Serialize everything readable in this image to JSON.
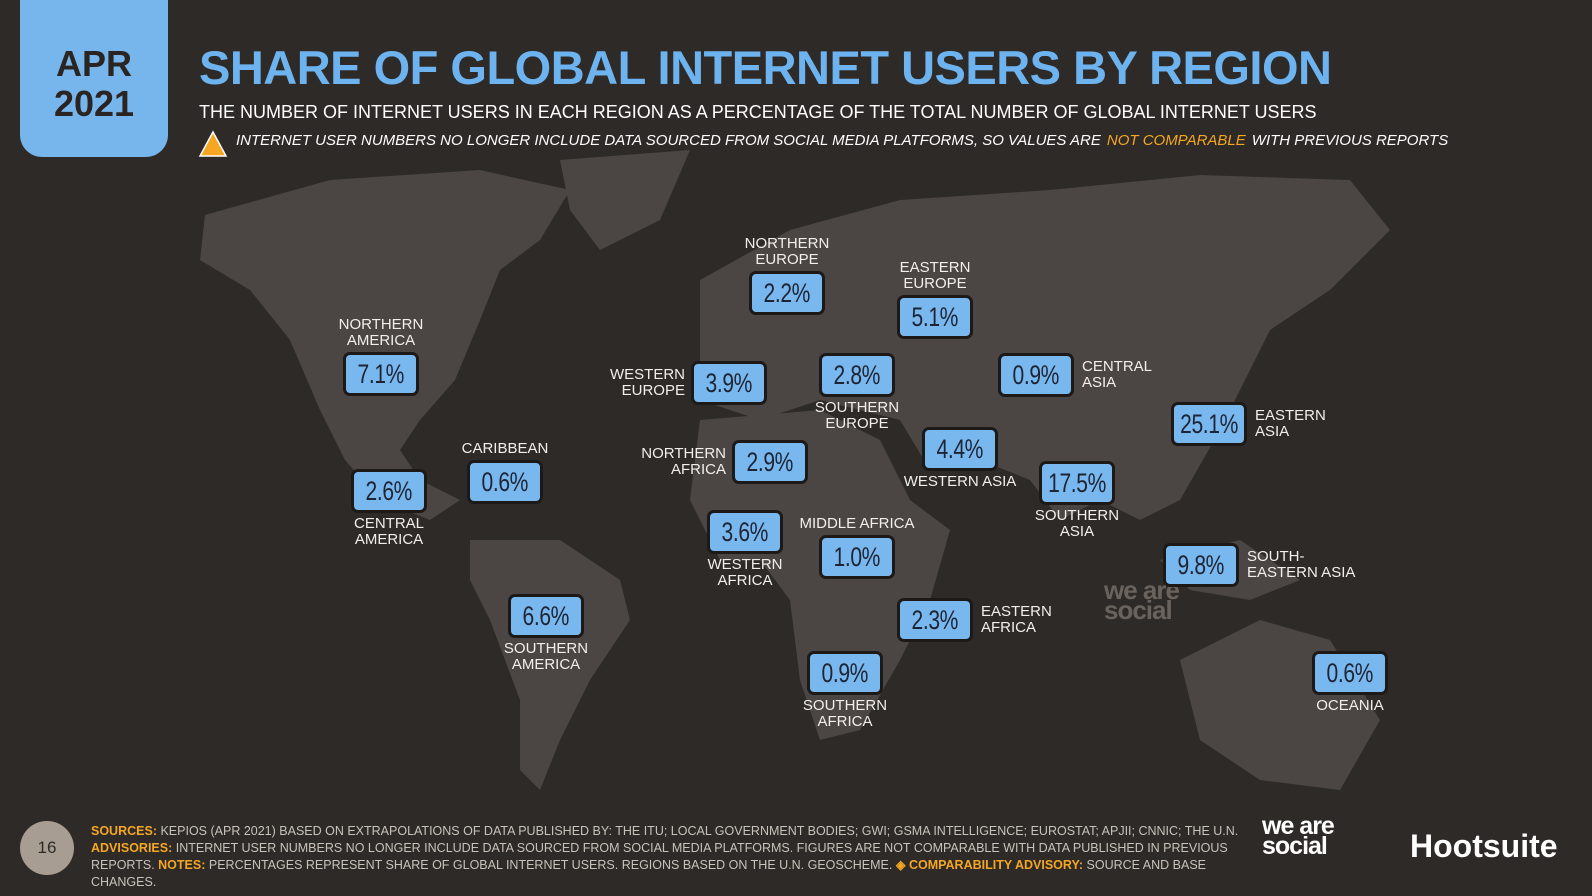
{
  "header": {
    "month": "APR",
    "year": "2021",
    "title": "SHARE OF GLOBAL INTERNET USERS BY REGION",
    "subtitle": "THE NUMBER OF INTERNET USERS IN EACH REGION AS A PERCENTAGE OF THE TOTAL NUMBER OF GLOBAL INTERNET USERS",
    "warning": {
      "before": "INTERNET USER NUMBERS NO LONGER INCLUDE DATA SOURCED FROM SOCIAL MEDIA PLATFORMS, SO VALUES ARE",
      "highlight": "NOT COMPARABLE",
      "after": "WITH PREVIOUS REPORTS"
    }
  },
  "regions": [
    {
      "name": "NORTHERN AMERICA",
      "share": "7.1%"
    },
    {
      "name": "CENTRAL AMERICA",
      "share": "2.6%"
    },
    {
      "name": "CARIBBEAN",
      "share": "0.6%"
    },
    {
      "name": "SOUTHERN AMERICA",
      "share": "6.6%"
    },
    {
      "name": "NORTHERN EUROPE",
      "share": "2.2%"
    },
    {
      "name": "WESTERN EUROPE",
      "share": "3.9%"
    },
    {
      "name": "SOUTHERN EUROPE",
      "share": "2.8%"
    },
    {
      "name": "EASTERN EUROPE",
      "share": "5.1%"
    },
    {
      "name": "NORTHERN AFRICA",
      "share": "2.9%"
    },
    {
      "name": "WESTERN AFRICA",
      "share": "3.6%"
    },
    {
      "name": "MIDDLE AFRICA",
      "share": "1.0%"
    },
    {
      "name": "EASTERN AFRICA",
      "share": "2.3%"
    },
    {
      "name": "SOUTHERN AFRICA",
      "share": "0.9%"
    },
    {
      "name": "WESTERN ASIA",
      "share": "4.4%"
    },
    {
      "name": "CENTRAL ASIA",
      "share": "0.9%"
    },
    {
      "name": "SOUTHERN ASIA",
      "share": "17.5%"
    },
    {
      "name": "EASTERN ASIA",
      "share": "25.1%"
    },
    {
      "name": "SOUTH-EASTERN ASIA",
      "share": "9.8%"
    },
    {
      "name": "OCEANIA",
      "share": "0.6%"
    }
  ],
  "watermark": "we are social",
  "footer": {
    "page": "16",
    "sources_label": "SOURCES:",
    "sources_text": "KEPIOS (APR 2021) BASED ON EXTRAPOLATIONS OF DATA PUBLISHED BY: THE ITU; LOCAL GOVERNMENT BODIES; GWI; GSMA INTELLIGENCE; EUROSTAT; APJII; CNNIC; THE U.N.",
    "advisories_label": "ADVISORIES:",
    "advisories_text": "INTERNET USER NUMBERS NO LONGER INCLUDE DATA SOURCED FROM SOCIAL MEDIA PLATFORMS. FIGURES ARE NOT COMPARABLE WITH DATA PUBLISHED IN PREVIOUS REPORTS.",
    "notes_label": "NOTES:",
    "notes_text": "PERCENTAGES REPRESENT SHARE OF GLOBAL INTERNET USERS. REGIONS BASED ON THE U.N. GEOSCHEME.",
    "comparability_label": "COMPARABILITY ADVISORY:",
    "comparability_text": "SOURCE AND BASE CHANGES.",
    "logo_left": "we are social",
    "logo_right": "Hootsuite"
  }
}
